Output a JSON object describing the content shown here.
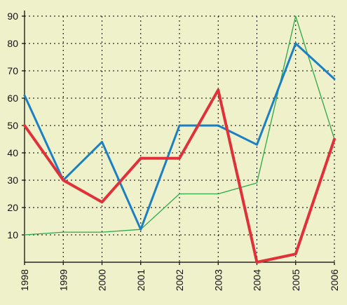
{
  "chart_data": {
    "type": "line",
    "title": "",
    "xlabel": "",
    "ylabel": "",
    "categories": [
      "1998",
      "1999",
      "2000",
      "2001",
      "2002",
      "2003",
      "2004",
      "2005",
      "2006"
    ],
    "ylim": [
      0,
      90
    ],
    "yticks": [
      10,
      20,
      30,
      40,
      50,
      60,
      70,
      80,
      90
    ],
    "grid": true,
    "series": [
      {
        "color": "#e0313a",
        "values": [
          50,
          30,
          22,
          38,
          38,
          63,
          0,
          3,
          45
        ]
      },
      {
        "color": "#1b7fc4",
        "values": [
          61,
          30,
          44,
          12,
          50,
          50,
          43,
          80,
          67
        ]
      },
      {
        "color": "#2ea84a",
        "values": [
          10,
          11,
          11,
          12,
          25,
          25,
          29,
          90,
          45
        ]
      }
    ]
  },
  "colors": {
    "background": "#eef1c9",
    "axis": "#000000",
    "grid": "#000000"
  }
}
